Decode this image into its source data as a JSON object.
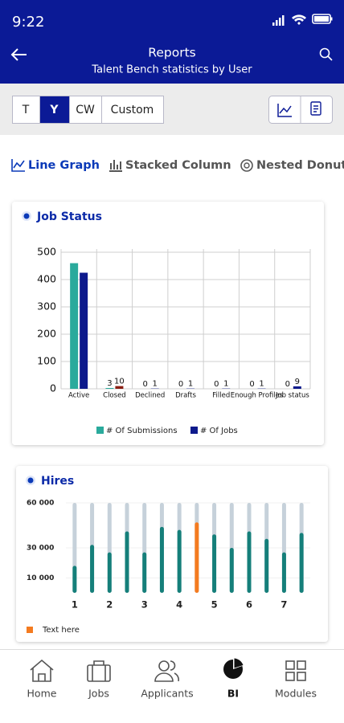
{
  "status_bar": {
    "time": "9:22"
  },
  "header": {
    "title": "Reports",
    "subtitle": "Talent Bench statistics by User"
  },
  "period_tabs": {
    "options": [
      "T",
      "Y",
      "CW",
      "Custom"
    ],
    "selected": 1
  },
  "view_tabs": {
    "options": [
      "Line Graph",
      "Stacked Column",
      "Nested Donut"
    ],
    "selected": 0
  },
  "cards": [
    {
      "title": "Job Status",
      "chart_data": {
        "type": "bar",
        "categories": [
          "Active",
          "Closed",
          "Declined",
          "Drafts",
          "Filled",
          "Enough Profiles",
          "Job status"
        ],
        "series": [
          {
            "name": "# Of Submissions",
            "color": "#2aaa9c",
            "values": [
              460,
              3,
              0,
              0,
              0,
              0,
              0
            ],
            "value_labels": [
              null,
              "3",
              "0",
              "0",
              "0",
              "0",
              "0"
            ]
          },
          {
            "name": "# Of Jobs",
            "color": "#0d1a8c",
            "colors": [
              "#0d1a8c",
              "#8b1f14",
              "#0d1a8c",
              "#0d1a8c",
              "#0d1a8c",
              "#0d1a8c",
              "#0d1a8c"
            ],
            "values": [
              425,
              10,
              1,
              1,
              1,
              1,
              9
            ],
            "value_labels": [
              null,
              "10",
              "1",
              "1",
              "1",
              "1",
              "9"
            ]
          }
        ],
        "ylim": [
          0,
          500
        ],
        "yticks": [
          0,
          100,
          200,
          300,
          400,
          500
        ],
        "grid": true
      }
    },
    {
      "title": "Hires",
      "chart_data": {
        "type": "bar",
        "categories": [
          "1",
          null,
          "2",
          null,
          "3",
          null,
          "4",
          null,
          "5",
          null,
          "6",
          null,
          "7",
          null
        ],
        "values": [
          18000,
          32000,
          27000,
          41000,
          27000,
          44000,
          42000,
          47000,
          39000,
          30000,
          41000,
          36000,
          27000,
          40000
        ],
        "colors": [
          "#157f7a",
          "#157f7a",
          "#157f7a",
          "#157f7a",
          "#157f7a",
          "#157f7a",
          "#157f7a",
          "#f47b20",
          "#157f7a",
          "#157f7a",
          "#157f7a",
          "#157f7a",
          "#157f7a",
          "#157f7a"
        ],
        "ylim": [
          0,
          60000
        ],
        "yticks": [
          {
            "value": 10000,
            "label": "10 000"
          },
          {
            "value": 30000,
            "label": "30 000"
          },
          {
            "value": 60000,
            "label": "60 000"
          }
        ],
        "legend": [
          {
            "label": "Text here",
            "color": "#f47b20"
          }
        ]
      }
    }
  ],
  "bottom_nav": {
    "items": [
      "Home",
      "Jobs",
      "Applicants",
      "BI",
      "Modules"
    ],
    "selected": 3
  }
}
